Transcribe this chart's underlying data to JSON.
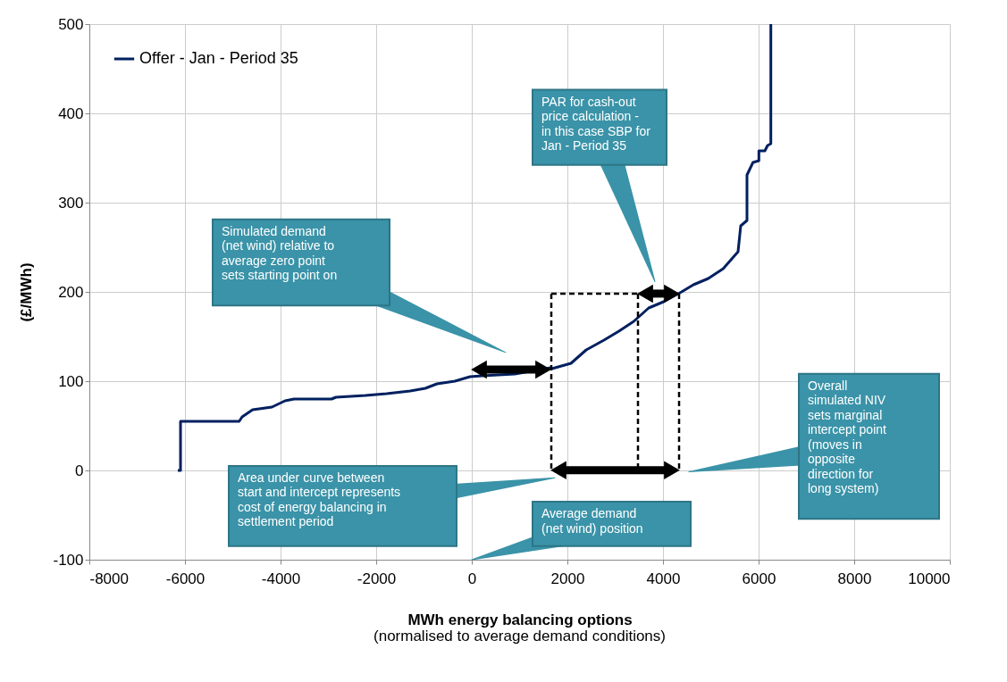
{
  "chart_data": {
    "type": "line",
    "xlabel": "MWh energy balancing options",
    "ylabel": "(£/MWh)",
    "xlim": [
      -8000,
      10000
    ],
    "xticks": [
      -8000,
      -6000,
      -4000,
      -2000,
      0,
      2000,
      4000,
      6000,
      8000,
      10000
    ],
    "ylim": [
      -100,
      500
    ],
    "yticks": [
      -100,
      0,
      100,
      200,
      300,
      400,
      500
    ],
    "grid": true,
    "legend": "top left",
    "marker": "none",
    "line_style": "solid",
    "x": [
      -6150,
      -6093,
      -6093,
      -4866,
      -4804,
      -4585,
      -4180,
      -3906,
      -3720,
      -2934,
      -2841,
      -2224,
      -1782,
      -1290,
      -972,
      -729,
      -355,
      -37,
      206,
      897,
      1645,
      1676,
      2075,
      2393,
      2766,
      3078,
      3389,
      3701,
      4013,
      4387,
      4636,
      4947,
      5259,
      5570,
      5626,
      5757,
      5757,
      5882,
      6006,
      6006,
      6131,
      6187,
      6256,
      6256
    ],
    "series": [
      {
        "name": "Offer - Jan - Period 35",
        "color": "#002060",
        "values": [
          0,
          0,
          55,
          55,
          60,
          68,
          71,
          78,
          80,
          80,
          82,
          84,
          86,
          89,
          92,
          97,
          100,
          105,
          106,
          108,
          115,
          114,
          120,
          135,
          146,
          156,
          167,
          182,
          189,
          200,
          208,
          215,
          226,
          245,
          274,
          280,
          331,
          345,
          347,
          358,
          358,
          364,
          366,
          500
        ]
      }
    ],
    "annotations": [
      "Simulated demand\n(net wind) relative to\naverage zero point\nsets starting point on",
      "PAR for cash-out\nprice calculation -\nin this case SBP for\nJan - Period 35",
      "Area under curve between\nstart and intercept represents\ncost of energy balancing  in\nsettlement period",
      "Average demand\n(net wind) position",
      "Overall\nsimulated NIV\nsets marginal\nintercept point\n(moves in\nopposite\ndirection for\nlong system)",
      "(normalised to average demand conditions)"
    ]
  }
}
